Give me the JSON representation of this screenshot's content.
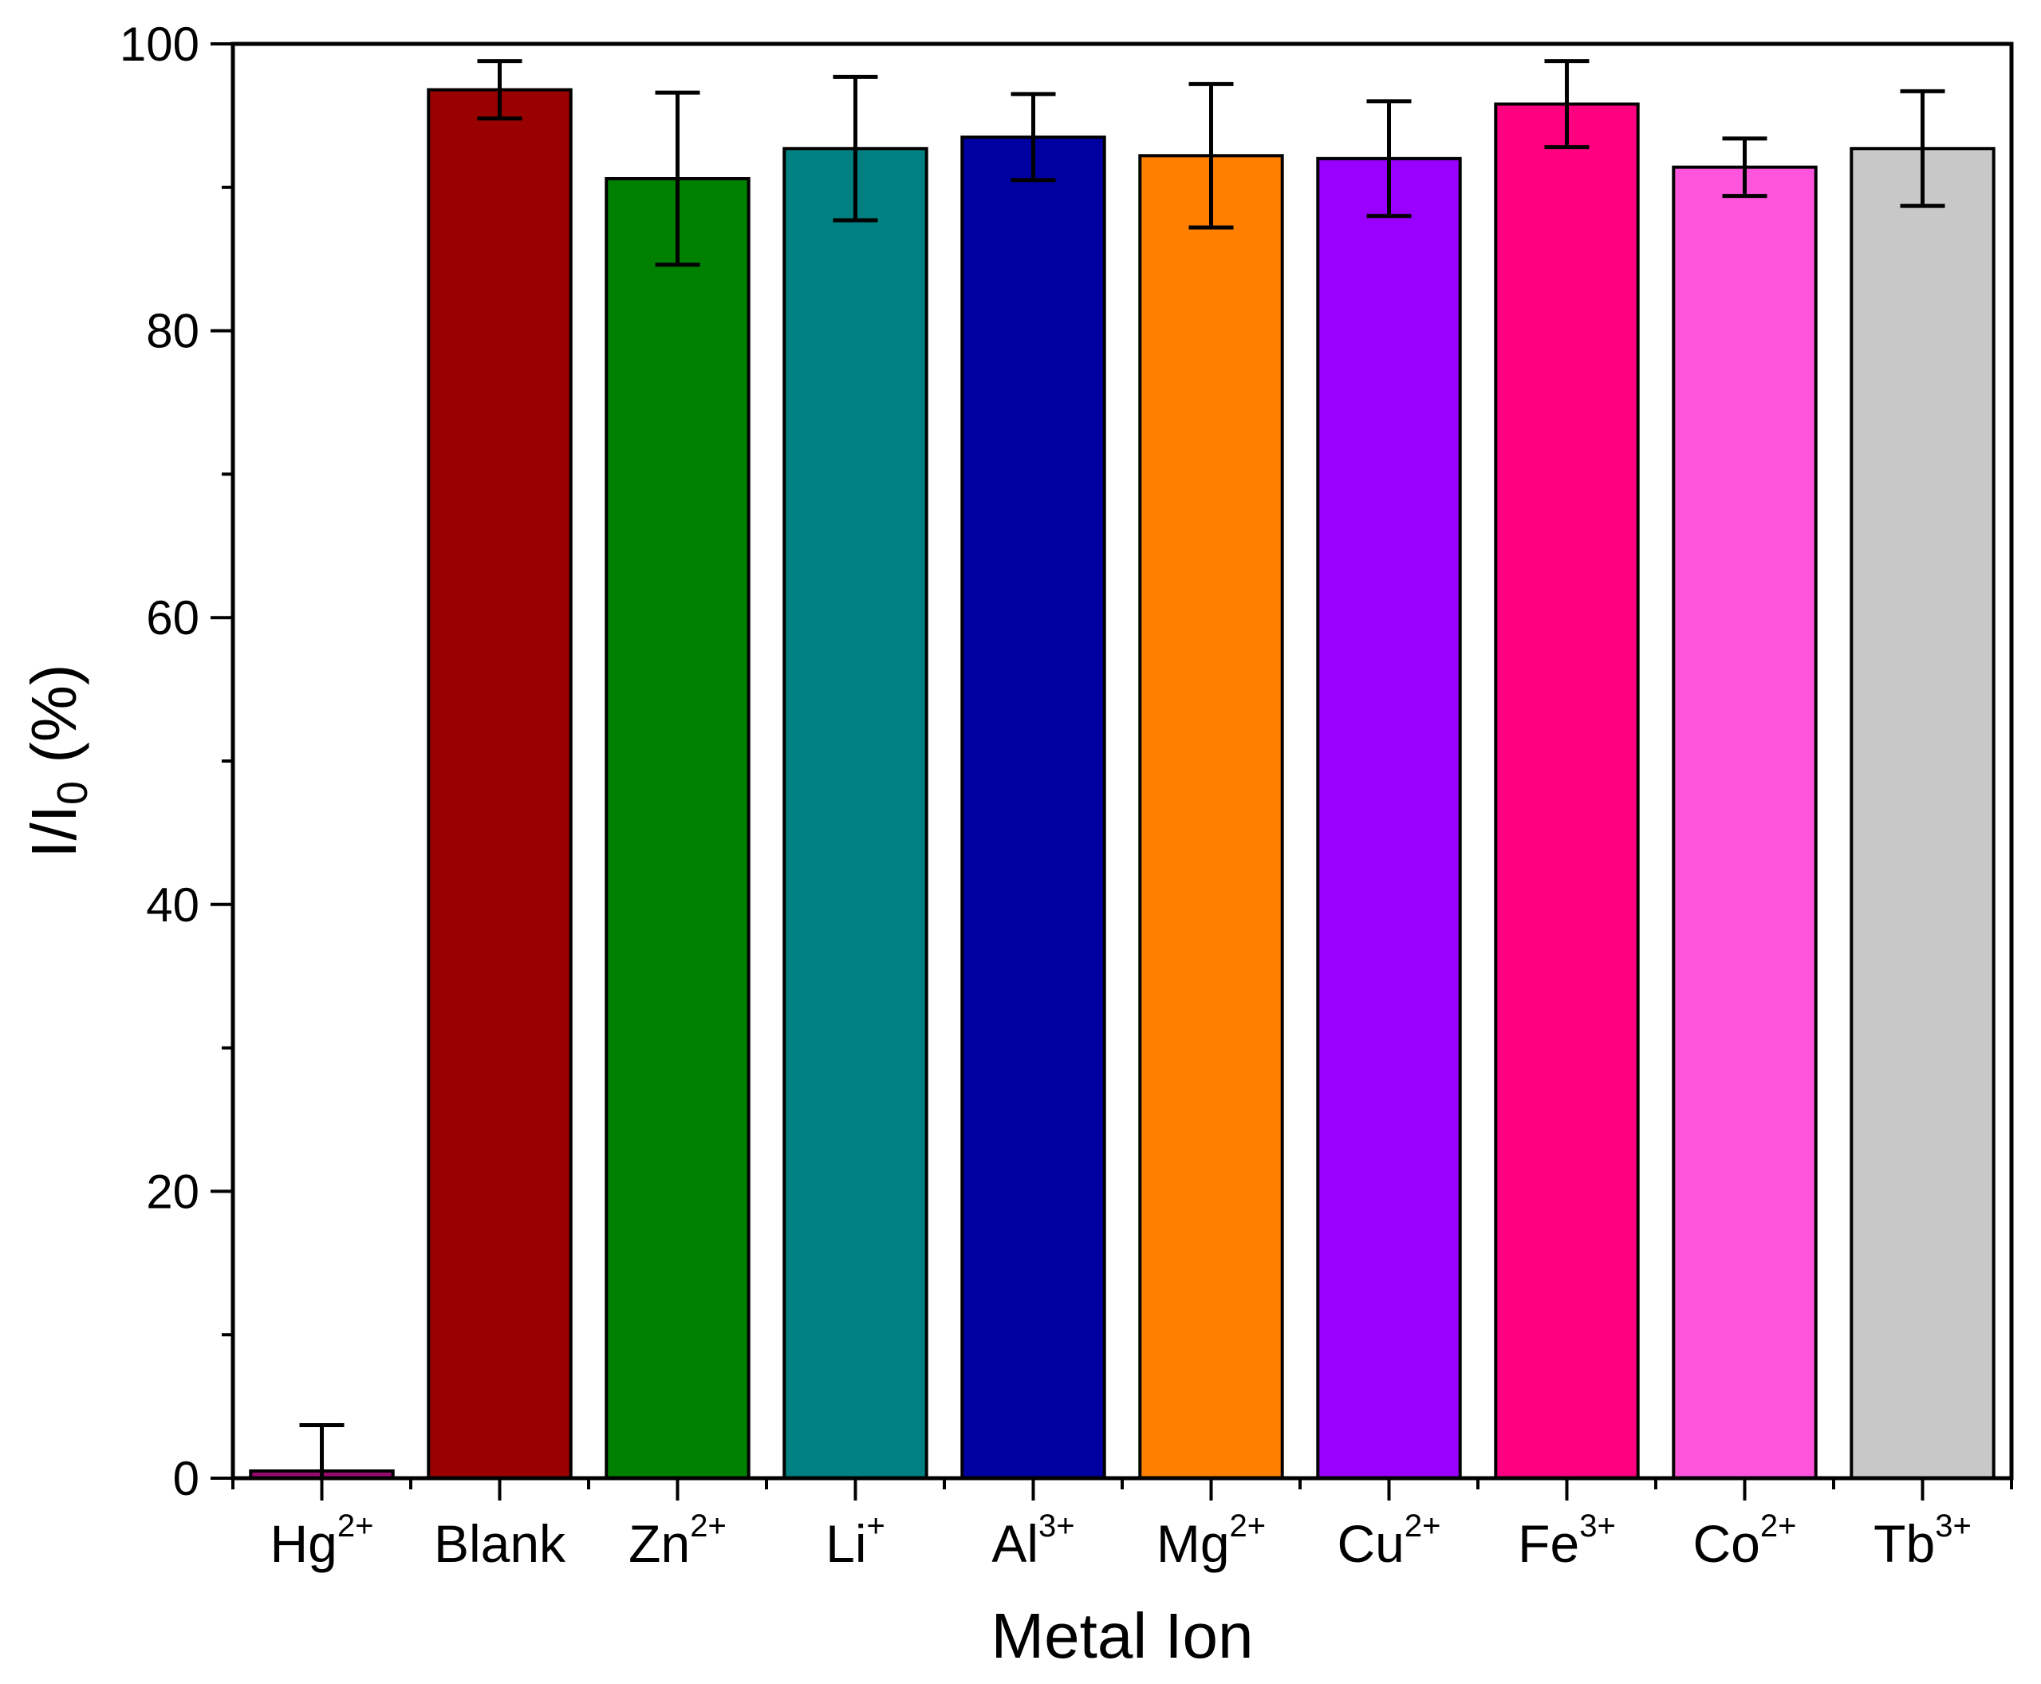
{
  "chart_data": {
    "type": "bar",
    "title": "",
    "xlabel": "Metal Ion",
    "ylabel": {
      "base": "I/I",
      "sub": "0",
      "suffix": " (%)"
    },
    "ylim": [
      0,
      100
    ],
    "yticks": [
      0,
      20,
      40,
      60,
      80,
      100
    ],
    "grid": false,
    "categories": [
      {
        "base": "Hg",
        "sup": "2+"
      },
      {
        "base": "Blank",
        "sup": ""
      },
      {
        "base": "Zn",
        "sup": "2+"
      },
      {
        "base": "Li",
        "sup": "+"
      },
      {
        "base": "Al",
        "sup": "3+"
      },
      {
        "base": "Mg",
        "sup": "2+"
      },
      {
        "base": "Cu",
        "sup": "2+"
      },
      {
        "base": "Fe",
        "sup": "3+"
      },
      {
        "base": "Co",
        "sup": "2+"
      },
      {
        "base": "Tb",
        "sup": "3+"
      }
    ],
    "values": [
      0.5,
      96.8,
      90.6,
      92.7,
      93.5,
      92.2,
      92.0,
      95.8,
      91.4,
      92.7
    ],
    "errors": [
      3.2,
      2.0,
      6.0,
      5.0,
      3.0,
      5.0,
      4.0,
      3.0,
      2.0,
      4.0
    ],
    "colors": [
      "#9b0a73",
      "#990000",
      "#008000",
      "#008080",
      "#0000a0",
      "#ff8000",
      "#9900ff",
      "#ff0080",
      "#ff55dd",
      "#c8c8c8"
    ]
  }
}
